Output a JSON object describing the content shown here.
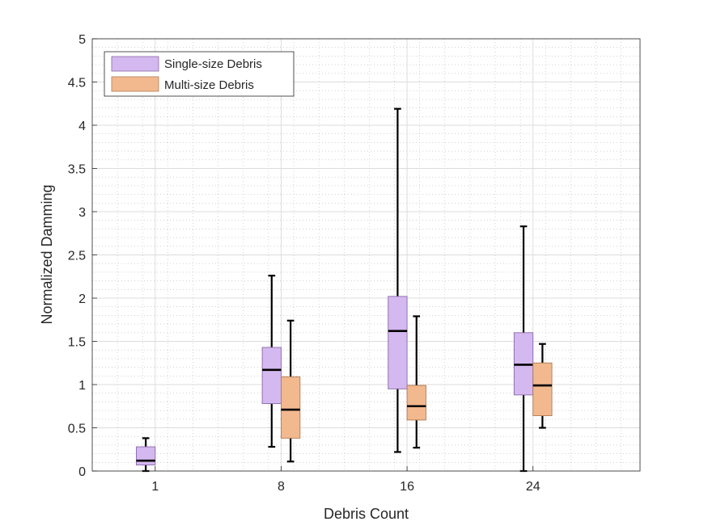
{
  "chart_data": {
    "type": "boxplot",
    "xlabel": "Debris Count",
    "ylabel": "Normalized Damming",
    "ylim": [
      0,
      5
    ],
    "yticks": [
      0,
      0.5,
      1,
      1.5,
      2,
      2.5,
      3,
      3.5,
      4,
      4.5,
      5
    ],
    "ytick_labels": [
      "0",
      "0.5",
      "1",
      "1.5",
      "2",
      "2.5",
      "3",
      "3.5",
      "4",
      "4.5",
      "5"
    ],
    "xlim": [
      0,
      4.35
    ],
    "categories": [
      "1",
      "8",
      "16",
      "24"
    ],
    "grid": true,
    "minor_grid": true,
    "legend_position": "top-left",
    "series": [
      {
        "name": "Single-size Debris",
        "color": "#d4b8f0",
        "edge": "#8a6aa8",
        "boxes": [
          {
            "category": "1",
            "min": 0.0,
            "q1": 0.07,
            "median": 0.12,
            "q3": 0.28,
            "max": 0.38
          },
          {
            "category": "8",
            "min": 0.28,
            "q1": 0.78,
            "median": 1.17,
            "q3": 1.43,
            "max": 2.26
          },
          {
            "category": "16",
            "min": 0.22,
            "q1": 0.95,
            "median": 1.62,
            "q3": 2.02,
            "max": 4.19
          },
          {
            "category": "24",
            "min": 0.0,
            "q1": 0.88,
            "median": 1.23,
            "q3": 1.6,
            "max": 2.83
          }
        ]
      },
      {
        "name": "Multi-size Debris",
        "color": "#f2b98f",
        "edge": "#b07a55",
        "boxes": [
          {
            "category": "8",
            "min": 0.11,
            "q1": 0.38,
            "median": 0.71,
            "q3": 1.09,
            "max": 1.74
          },
          {
            "category": "16",
            "min": 0.27,
            "q1": 0.59,
            "median": 0.75,
            "q3": 0.99,
            "max": 1.79
          },
          {
            "category": "24",
            "min": 0.5,
            "q1": 0.64,
            "median": 0.99,
            "q3": 1.25,
            "max": 1.47
          }
        ]
      }
    ]
  }
}
